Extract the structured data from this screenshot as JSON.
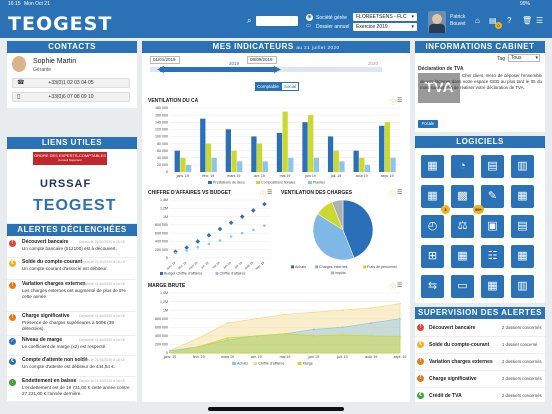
{
  "status": {
    "time": "16:15",
    "date": "Mon Oct 21",
    "battery": "99%"
  },
  "header": {
    "logo": "TEOGEST",
    "societe_label": "Société gérée",
    "dossier_label": "Dossier annuel",
    "societe_value": "FLOREETSENS - FLC",
    "exercice_value": "Exercice 2019",
    "user_first": "Patrick",
    "user_last": "Bouvet",
    "badge": "0"
  },
  "contacts": {
    "title": "CONTACTS",
    "name": "Sophie Martin",
    "role": "Gérante",
    "phone1": "+33(0)1 02 03 04 05",
    "phone2": "+33(0)6 07 08 09 10"
  },
  "liens": {
    "title": "LIENS UTILES",
    "l1": "ORDRE DES EXPERTS-COMPTABLES",
    "l1b": "Conseil Supérieur",
    "l2": "URSSAF",
    "l3": "TEOGEST"
  },
  "alerts": {
    "title": "ALERTES DÉCLENCHÉES",
    "items": [
      {
        "title": "Découvert bancaire",
        "date": "Depuis le 21/10/2020 à 16:15",
        "body": "Un compte bancaire (512100) est à découvert.",
        "color": "#e2443a",
        "icon": "!"
      },
      {
        "title": "Solde du compte-courant",
        "date": "Depuis le 21/10/2020 à 16:15",
        "body": "Un compte-courant d'associé est débiteur.",
        "color": "#f2b21c",
        "icon": "€"
      },
      {
        "title": "Variation charges externes",
        "date": "Depuis le 21/10/2020 à 16:15",
        "body": "Les charges externes ont augmenté de plus de 8% cette année.",
        "color": "#e87a1e",
        "icon": "!"
      },
      {
        "title": "Charge significative",
        "date": "Depuis le 21/10/2020 à 16:15",
        "body": "Présence de charges supérieures à 500€ (39 détectées).",
        "color": "#e87a1e",
        "icon": "!"
      },
      {
        "title": "Niveau de marge",
        "date": "Depuis le 21/10/2020 à 16:15",
        "body": "Le coefficient de marge (x2) est respecté.",
        "color": "#2a72b5",
        "icon": "✓"
      },
      {
        "title": "Compte d'attente non soldé",
        "date": "Depuis le 21/10/2020 à 16:15",
        "body": "Un compte d'attente est débiteur de 444,54 €.",
        "color": "#2a72b5",
        "icon": "€"
      },
      {
        "title": "Endettement en baisse",
        "date": "Depuis le 21/10/2020 à 16:15",
        "body": "L'endettement est de 19 731,00 € cette année contre 27 231,00 € l'année dernière.",
        "color": "#3fa13c",
        "icon": "↓"
      }
    ]
  },
  "indicateurs": {
    "title": "MES INDICATEURS",
    "subtitle": "au 21 juillet 2020",
    "date_start": "01/01/2019",
    "date_end": "08/09/2019",
    "year1": "2019",
    "year2": "2020",
    "toggle1": "Comptable",
    "toggle2": "Social"
  },
  "chart_data": [
    {
      "type": "bar",
      "title": "VENTILATION DU CA",
      "categories": [
        "janv. 19",
        "févr. 19",
        "mars 19",
        "avr. 19",
        "mai 19",
        "juin 19",
        "juil. 19",
        "août 19",
        "sept. 19"
      ],
      "ylim": [
        0,
        180000
      ],
      "yticks": [
        "180 000",
        "160 000",
        "140 000",
        "120 000",
        "100 000",
        "80 000",
        "60 000",
        "40 000",
        "20 000",
        "0"
      ],
      "series": [
        {
          "name": "Prestations de déco",
          "color": "#2a6fb8",
          "values": [
            60000,
            150000,
            120000,
            100000,
            110000,
            140000,
            100000,
            60000,
            130000
          ]
        },
        {
          "name": "Compositions florales",
          "color": "#c9d930",
          "values": [
            40000,
            80000,
            60000,
            80000,
            170000,
            160000,
            60000,
            40000,
            140000
          ]
        },
        {
          "name": "Plantes",
          "color": "#8fc4e8",
          "values": [
            20000,
            40000,
            30000,
            30000,
            40000,
            40000,
            30000,
            20000,
            40000
          ]
        }
      ]
    },
    {
      "type": "scatter",
      "title": "CHIFFRE D'AFFAIRES VS BUDGET",
      "categories": [
        "janv. 19",
        "févr. 19",
        "mars 19",
        "avr. 19",
        "mai 19",
        "juin 19",
        "juil. 19",
        "août 19",
        "sept. 19"
      ],
      "ylim": [
        0,
        1400000
      ],
      "yticks": [
        "1,4M",
        "1,2M",
        "1M",
        "800 000",
        "600 000",
        "400 000",
        "200 000",
        "0"
      ],
      "series": [
        {
          "name": "Budget Chiffre d'affaires",
          "color": "#2a6fb8",
          "values": [
            150000,
            250000,
            400000,
            550000,
            700000,
            850000,
            1000000,
            1150000,
            1300000
          ]
        },
        {
          "name": "Chiffre d'affaires",
          "color": "#8fc4e8",
          "values": [
            120000,
            180000,
            260000,
            340000,
            420000,
            520000,
            600000,
            680000,
            780000
          ]
        }
      ]
    },
    {
      "type": "pie",
      "title": "VENTILATION DES CHARGES",
      "series": [
        {
          "name": "Achats",
          "color": "#2a6fb8",
          "value": 44
        },
        {
          "name": "Charges externes",
          "color": "#7fb8e4",
          "value": 40
        },
        {
          "name": "Frais de personnel",
          "color": "#c9d930",
          "value": 10
        },
        {
          "name": "Impôts",
          "color": "#b0b0b0",
          "value": 6
        }
      ]
    },
    {
      "type": "area",
      "title": "MARGE BRUTE",
      "categories": [
        "janv. 19",
        "févr. 19",
        "mars 19",
        "avr. 19",
        "mai 19",
        "juin 19",
        "juil. 19",
        "août 19",
        "sept. 19"
      ],
      "ylim": [
        0,
        1400000
      ],
      "yticks": [
        "1,4M",
        "1,2M",
        "1M",
        "800 000",
        "600 000",
        "400 000",
        "200 000",
        "0"
      ],
      "series": [
        {
          "name": "Achats",
          "color": "#8fc4e8",
          "values": [
            50000,
            150000,
            300000,
            400000,
            450000,
            550000,
            600000,
            700000,
            800000
          ]
        },
        {
          "name": "Chiffre d'affaires",
          "color": "#f3d98e",
          "values": [
            60000,
            350000,
            700000,
            800000,
            900000,
            950000,
            1000000,
            1050000,
            1150000
          ]
        },
        {
          "name": "Marge",
          "color": "#c9d930",
          "values": [
            10000,
            150000,
            350000,
            400000,
            450000,
            400000,
            420000,
            400000,
            380000
          ]
        }
      ]
    }
  ],
  "info": {
    "title": "INFORMATIONS CABINET",
    "tag_label": "Tag :",
    "tag_value": "Tous",
    "article_title": "Déclaration de TVA",
    "image_text": "TVA",
    "body": "Cher client, merci de déposer l'ensemble de vos factures dans votre espace GED au plus tard le 05 du mois suivant afin de réaliser votre déclaration de TVA.",
    "button": "Focale"
  },
  "logiciels": {
    "title": "LOGICIELS",
    "badge1": "3",
    "badge2": "99+"
  },
  "supervision": {
    "title": "SUPERVISION DES ALERTES",
    "items": [
      {
        "title": "Découvert bancaire",
        "count": "2 dossiers concernés",
        "color": "#e2443a",
        "icon": "!"
      },
      {
        "title": "Solde du compte-courant",
        "count": "1 dossier concerné",
        "color": "#f2b21c",
        "icon": "€"
      },
      {
        "title": "Variation charges externes",
        "count": "2 dossiers concernés",
        "color": "#e87a1e",
        "icon": "!"
      },
      {
        "title": "Charge significative",
        "count": "2 dossiers concernés",
        "color": "#e87a1e",
        "icon": "!"
      },
      {
        "title": "Crédit de TVA",
        "count": "2 dossiers concernés",
        "color": "#3fa13c",
        "icon": "€"
      }
    ]
  }
}
